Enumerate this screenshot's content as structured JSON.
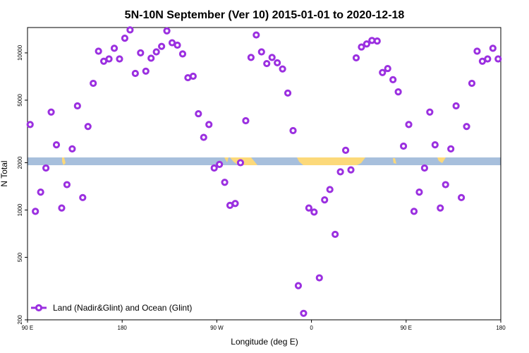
{
  "chart_data": {
    "type": "scatter",
    "title": "5N-10N September (Ver 10)   2015-01-01 to 2020-12-18",
    "xlabel": "Longitude (deg E)",
    "ylabel": "N Total",
    "x_scale": "linear",
    "y_scale": "log",
    "xlim": [
      90,
      540
    ],
    "ylim": [
      200,
      14500
    ],
    "x_ticks": [
      {
        "value": 90,
        "label": "90 E"
      },
      {
        "value": 180,
        "label": "180"
      },
      {
        "value": 270,
        "label": "90 W"
      },
      {
        "value": 360,
        "label": "0"
      },
      {
        "value": 450,
        "label": "90 E"
      },
      {
        "value": 540,
        "label": "180"
      }
    ],
    "y_ticks": [
      {
        "value": 200,
        "label": "200"
      },
      {
        "value": 500,
        "label": "500"
      },
      {
        "value": 1000,
        "label": "1000"
      },
      {
        "value": 2000,
        "label": "2000"
      },
      {
        "value": 5000,
        "label": "5000"
      },
      {
        "value": 10000,
        "label": "10000"
      }
    ],
    "colors": {
      "points": "#9b30e0",
      "ocean_band": "#a7bfdc",
      "land": "#fcd97a"
    },
    "legend": {
      "location": "bottom-left",
      "label": "Land (Nadir&Glint) and Ocean (Glint)"
    },
    "series": [
      {
        "name": "Land (Nadir&Glint) and Ocean (Glint)",
        "x": [
          92.5,
          97.5,
          102.5,
          107.5,
          112.5,
          117.5,
          122.5,
          127.5,
          132.5,
          137.5,
          142.5,
          147.5,
          152.5,
          157.5,
          162.5,
          167.5,
          172.5,
          177.5,
          182.5,
          187.5,
          192.5,
          197.5,
          202.5,
          207.5,
          212.5,
          217.5,
          222.5,
          227.5,
          232.5,
          237.5,
          242.5,
          247.5,
          252.5,
          257.5,
          262.5,
          267.5,
          272.5,
          277.5,
          282.5,
          287.5,
          292.5,
          297.5,
          302.5,
          307.5,
          312.5,
          317.5,
          322.5,
          327.5,
          332.5,
          337.5,
          342.5,
          347.5,
          352.5,
          357.5,
          362.5,
          367.5,
          372.5,
          377.5,
          382.5,
          387.5,
          392.5,
          397.5,
          402.5,
          407.5,
          412.5,
          417.5,
          422.5,
          427.5,
          432.5,
          437.5,
          442.5,
          447.5,
          452.5,
          457.5,
          462.5,
          467.5,
          472.5,
          477.5,
          482.5,
          487.5,
          492.5,
          497.5,
          502.5,
          507.5,
          512.5,
          517.5,
          522.5,
          527.5,
          532.5,
          537.5
        ],
        "y": [
          3500,
          980,
          1300,
          1850,
          4200,
          2600,
          1030,
          1450,
          2450,
          4600,
          1200,
          3400,
          6400,
          10250,
          8850,
          9150,
          10700,
          9150,
          12400,
          14000,
          7400,
          10000,
          7650,
          9250,
          10150,
          11000,
          13800,
          11600,
          11200,
          9850,
          6950,
          7100,
          4100,
          2900,
          3500,
          1850,
          1950,
          1500,
          1070,
          1100,
          2000,
          3700,
          9350,
          13000,
          10150,
          8550,
          9350,
          8650,
          7900,
          5550,
          3200,
          330,
          220,
          1030,
          970,
          370,
          1160,
          1350,
          700,
          1750,
          2400,
          1800,
          9300,
          10900,
          11400,
          12000,
          11900,
          7500,
          7950,
          6750,
          5650,
          2550,
          3500,
          980,
          1300,
          1850,
          4200,
          2600,
          1030,
          1450,
          2450,
          4600,
          1200,
          3400,
          6400,
          10250,
          8850,
          9150,
          10700,
          9150
        ]
      }
    ]
  }
}
